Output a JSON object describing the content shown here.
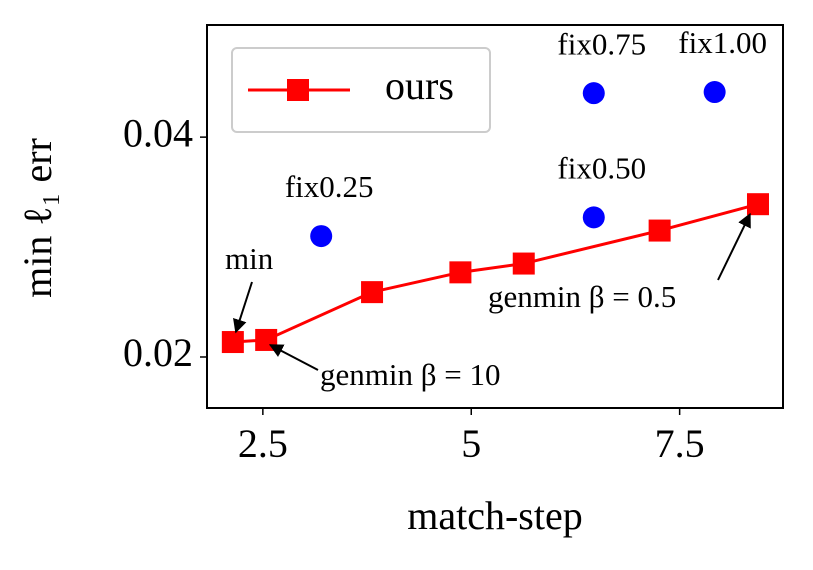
{
  "chart_data": {
    "type": "line",
    "xlabel": "match-step",
    "ylabel": "min ℓ₁ err",
    "xlim": [
      1.83,
      8.74
    ],
    "ylim": [
      0.01536,
      0.0502
    ],
    "xticks": [
      2.5,
      5.0,
      7.5
    ],
    "yticks": [
      0.02,
      0.04
    ],
    "legend": "upper left",
    "series": [
      {
        "name": "ours",
        "color": "#ff0000",
        "marker": "square",
        "x": [
          2.14,
          2.54,
          3.81,
          4.87,
          5.63,
          7.26,
          8.44
        ],
        "y": [
          0.02136,
          0.02155,
          0.0259,
          0.0277,
          0.0285,
          0.0315,
          0.0339
        ]
      }
    ],
    "points": {
      "color": "#0000ff",
      "labels": [
        "fix0.25",
        "fix0.50",
        "fix0.75",
        "fix1.00"
      ],
      "x": [
        3.2,
        6.47,
        6.47,
        7.92
      ],
      "y": [
        0.031,
        0.0327,
        0.044,
        0.0441
      ]
    },
    "annotations": [
      "min",
      "genmin β = 10",
      "genmin β = 0.5"
    ]
  }
}
